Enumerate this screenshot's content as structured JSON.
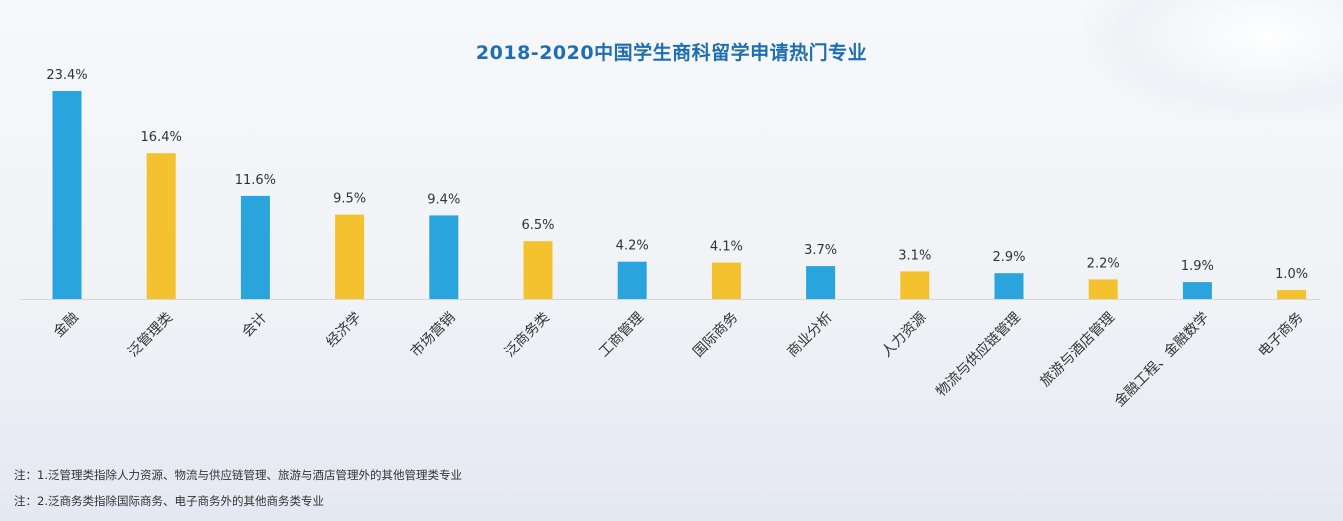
{
  "colors": {
    "blue": "#2aa4dc",
    "yellow": "#f4c22f",
    "title": "#1f6fb0"
  },
  "chart_data": {
    "type": "bar",
    "title": "2018-2020中国学生商科留学申请热门专业",
    "categories": [
      "金融",
      "泛管理类",
      "会计",
      "经济学",
      "市场营销",
      "泛商务类",
      "工商管理",
      "国际商务",
      "商业分析",
      "人力资源",
      "物流与供应链管理",
      "旅游与酒店管理",
      "金融工程、金融数学",
      "电子商务"
    ],
    "values": [
      23.4,
      16.4,
      11.6,
      9.5,
      9.4,
      6.5,
      4.2,
      4.1,
      3.7,
      3.1,
      2.9,
      2.2,
      1.9,
      1.0
    ],
    "value_labels": [
      "23.4%",
      "16.4%",
      "11.6%",
      "9.5%",
      "9.4%",
      "6.5%",
      "4.2%",
      "4.1%",
      "3.7%",
      "3.1%",
      "2.9%",
      "2.2%",
      "1.9%",
      "1.0%"
    ],
    "bar_colors": [
      "blue",
      "yellow",
      "blue",
      "yellow",
      "blue",
      "yellow",
      "blue",
      "yellow",
      "blue",
      "yellow",
      "blue",
      "yellow",
      "blue",
      "yellow"
    ],
    "ylim": [
      0,
      23.4
    ],
    "xlabel": "",
    "ylabel": "",
    "grid": false,
    "legend": "none"
  },
  "notes": [
    "注：1.泛管理类指除人力资源、物流与供应链管理、旅游与酒店管理外的其他管理类专业",
    "注：2.泛商务类指除国际商务、电子商务外的其他商务类专业"
  ]
}
